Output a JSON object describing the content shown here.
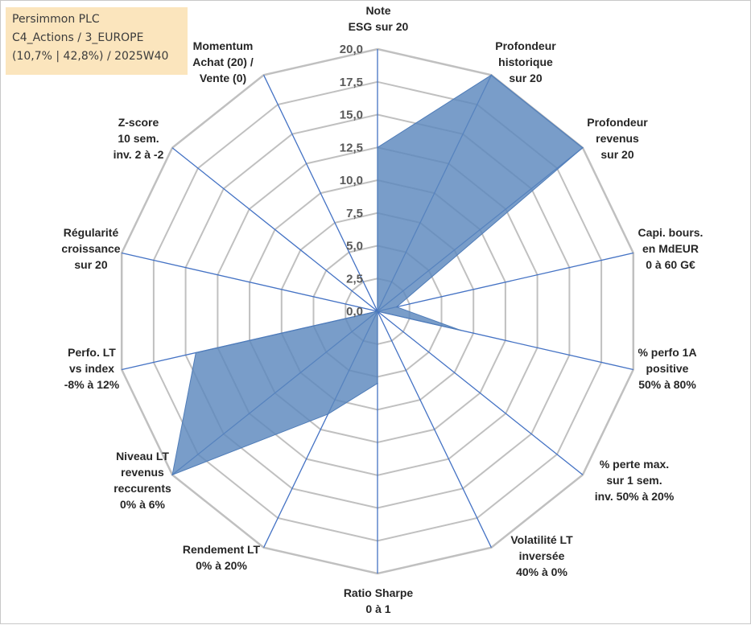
{
  "info_box": {
    "line1": "Persimmon PLC",
    "line2": "C4_Actions / 3_EUROPE",
    "line3": "(10,7% | 42,8%) / 2025W40"
  },
  "colors": {
    "grid": "#c0c0c0",
    "axis": "#4472c4",
    "fill": "#5b87bd",
    "stroke": "#4f7cb8",
    "info_bg": "#fbe5bd"
  },
  "chart_data": {
    "type": "radar",
    "title": "",
    "rlim": [
      0,
      20
    ],
    "ticks": [
      "0,0",
      "2,5",
      "5,0",
      "7,5",
      "10,0",
      "12,5",
      "15,0",
      "17,5",
      "20,0"
    ],
    "grid": true,
    "axes": [
      [
        "Note",
        "ESG sur 20"
      ],
      [
        "Profondeur",
        "historique",
        "sur 20"
      ],
      [
        "Profondeur",
        "revenus",
        "sur 20"
      ],
      [
        "Capi. bours.",
        "en MdEUR",
        "0 à 60 G€"
      ],
      [
        "% perfo 1A",
        "positive",
        "50% à 80%"
      ],
      [
        "% perte max.",
        "sur 1 sem.",
        "inv. 50% à 20%"
      ],
      [
        "Volatilité LT",
        "inversée",
        "40% à 0%"
      ],
      [
        "Ratio Sharpe",
        "0 à 1"
      ],
      [
        "Rendement LT",
        "0% à 20%"
      ],
      [
        "Niveau LT",
        "revenus",
        "reccurents",
        "0% à 6%"
      ],
      [
        "Perfo. LT",
        "vs index",
        "-8% à 12%"
      ],
      [
        "Régularité",
        "croissance",
        "sur 20"
      ],
      [
        "Z-score",
        "10 sem.",
        "inv. 2 à -2"
      ],
      [
        "Momentum",
        "Achat (20) /",
        "Vente (0)"
      ]
    ],
    "values": [
      12.5,
      20,
      20,
      1.5,
      6.5,
      0,
      0,
      5.5,
      8.7,
      20,
      14.2,
      0,
      0,
      0
    ]
  }
}
